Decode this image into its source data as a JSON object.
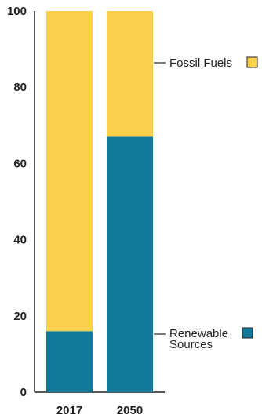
{
  "chart_data": {
    "type": "bar",
    "stacked": true,
    "categories": [
      "2017",
      "2050"
    ],
    "series": [
      {
        "name": "Renewable Sources",
        "values": [
          16,
          67
        ],
        "color": "#117a9c"
      },
      {
        "name": "Fossil Fuels",
        "values": [
          84,
          33
        ],
        "color": "#f9cf4b"
      }
    ],
    "yticks": [
      "0",
      "20",
      "40",
      "60",
      "80",
      "100"
    ],
    "ylim": [
      0,
      100
    ],
    "grid": false,
    "legend": {
      "placement": "right",
      "fossil_label": "Fossil Fuels",
      "renewable_line1": "Renewable",
      "renewable_line2": "Sources"
    }
  }
}
